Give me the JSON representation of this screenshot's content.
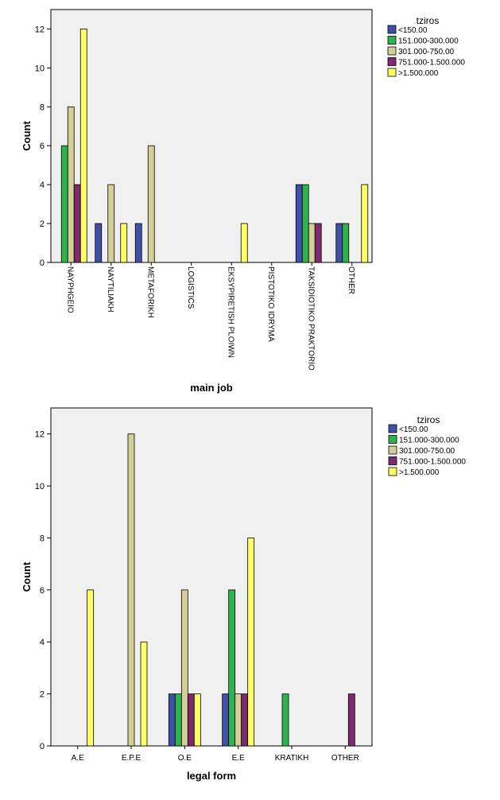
{
  "chart_data": [
    {
      "type": "bar",
      "xlabel": "main job",
      "ylabel": "Count",
      "ylim": [
        0,
        13
      ],
      "yticks": [
        0,
        2,
        4,
        6,
        8,
        10,
        12
      ],
      "grid": false,
      "legend_title": "tziros",
      "legend_position": "right",
      "categories": [
        "NAYPHGEIO",
        "NAYTILIAKH",
        "METAFORIKH",
        "LOGISTICS",
        "EKSYPIRETISH PLOIWN",
        "PISTOTIKO IDRYMA",
        "TAKSIDIOTIKO PRAKTORIO",
        "OTHER"
      ],
      "series": [
        {
          "name": "<150.00",
          "color": "#3f50a6",
          "values": [
            0,
            2,
            2,
            0,
            0,
            0,
            4,
            2
          ]
        },
        {
          "name": "151.000-300.000",
          "color": "#2db44f",
          "values": [
            6,
            0,
            0,
            0,
            0,
            0,
            4,
            2
          ]
        },
        {
          "name": "301.000-750.00",
          "color": "#d4cf96",
          "values": [
            8,
            4,
            6,
            0,
            0,
            0,
            2,
            0
          ]
        },
        {
          "name": "751.000-1.500.000",
          "color": "#7e2a6e",
          "values": [
            4,
            0,
            0,
            0,
            0,
            0,
            2,
            0
          ]
        },
        {
          "name": ">1.500.000",
          "color": "#ffff66",
          "values": [
            12,
            2,
            0,
            0,
            2,
            0,
            0,
            4
          ]
        }
      ]
    },
    {
      "type": "bar",
      "xlabel": "legal form",
      "ylabel": "Count",
      "ylim": [
        0,
        13
      ],
      "yticks": [
        0,
        2,
        4,
        6,
        8,
        10,
        12
      ],
      "grid": false,
      "legend_title": "tziros",
      "legend_position": "right",
      "categories": [
        "A.E",
        "E.P.E",
        "O.E",
        "E.E",
        "KRATIKH",
        "OTHER"
      ],
      "series": [
        {
          "name": "<150.00",
          "color": "#3f50a6",
          "values": [
            0,
            0,
            2,
            2,
            0,
            0
          ]
        },
        {
          "name": "151.000-300.000",
          "color": "#2db44f",
          "values": [
            0,
            0,
            2,
            6,
            2,
            0
          ]
        },
        {
          "name": "301.000-750.00",
          "color": "#d4cf96",
          "values": [
            0,
            12,
            6,
            2,
            0,
            0
          ]
        },
        {
          "name": "751.000-1.500.000",
          "color": "#7e2a6e",
          "values": [
            0,
            0,
            2,
            2,
            0,
            2
          ]
        },
        {
          "name": ">1.500.000",
          "color": "#ffff66",
          "values": [
            6,
            4,
            2,
            8,
            0,
            0
          ]
        }
      ]
    }
  ]
}
